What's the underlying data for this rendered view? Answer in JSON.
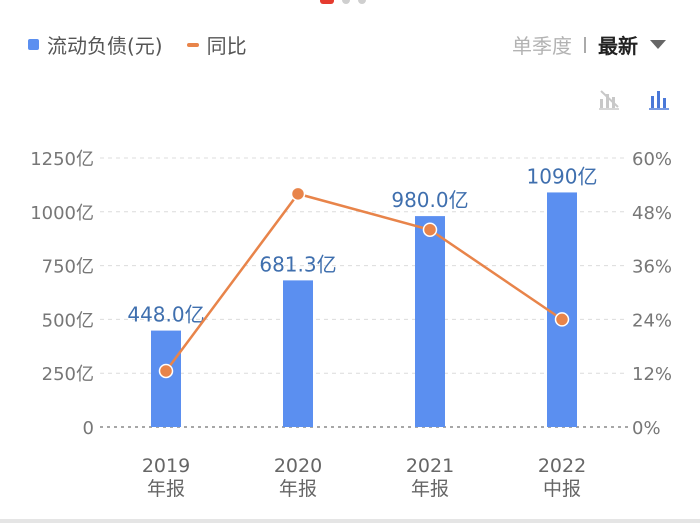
{
  "legend": {
    "bar_label": "流动负债(元)",
    "line_label": "同比"
  },
  "period": {
    "option_single": "单季度",
    "option_latest": "最新"
  },
  "icons": {
    "hide_line": "line-off-icon",
    "bar_chart": "bar-chart-icon",
    "dropdown": "chevron-down-icon"
  },
  "colors": {
    "bar": "#5b8ff0",
    "line": "#e8844a",
    "bar_label": "#3f6fae",
    "axis_text": "#777777"
  },
  "chart_data": {
    "type": "bar",
    "categories": [
      [
        "2019",
        "年报"
      ],
      [
        "2020",
        "年报"
      ],
      [
        "2021",
        "年报"
      ],
      [
        "2022",
        "中报"
      ]
    ],
    "series": [
      {
        "name": "流动负债(元)",
        "type": "bar",
        "axis": "left",
        "values": [
          448.0,
          681.3,
          980.0,
          1090
        ],
        "labels": [
          "448.0亿",
          "681.3亿",
          "980.0亿",
          "1090亿"
        ]
      },
      {
        "name": "同比",
        "type": "line",
        "axis": "right",
        "values": [
          12.5,
          52,
          44,
          24
        ]
      }
    ],
    "y_left": {
      "min": 0,
      "max": 1250,
      "ticks": [
        0,
        250,
        500,
        750,
        1000,
        1250
      ],
      "tick_labels": [
        "0",
        "250亿",
        "500亿",
        "750亿",
        "1000亿",
        "1250亿"
      ]
    },
    "y_right": {
      "min": 0,
      "max": 60,
      "ticks": [
        0,
        12,
        24,
        36,
        48,
        60
      ],
      "tick_labels": [
        "0%",
        "12%",
        "24%",
        "36%",
        "48%",
        "60%"
      ]
    },
    "grid": true
  }
}
